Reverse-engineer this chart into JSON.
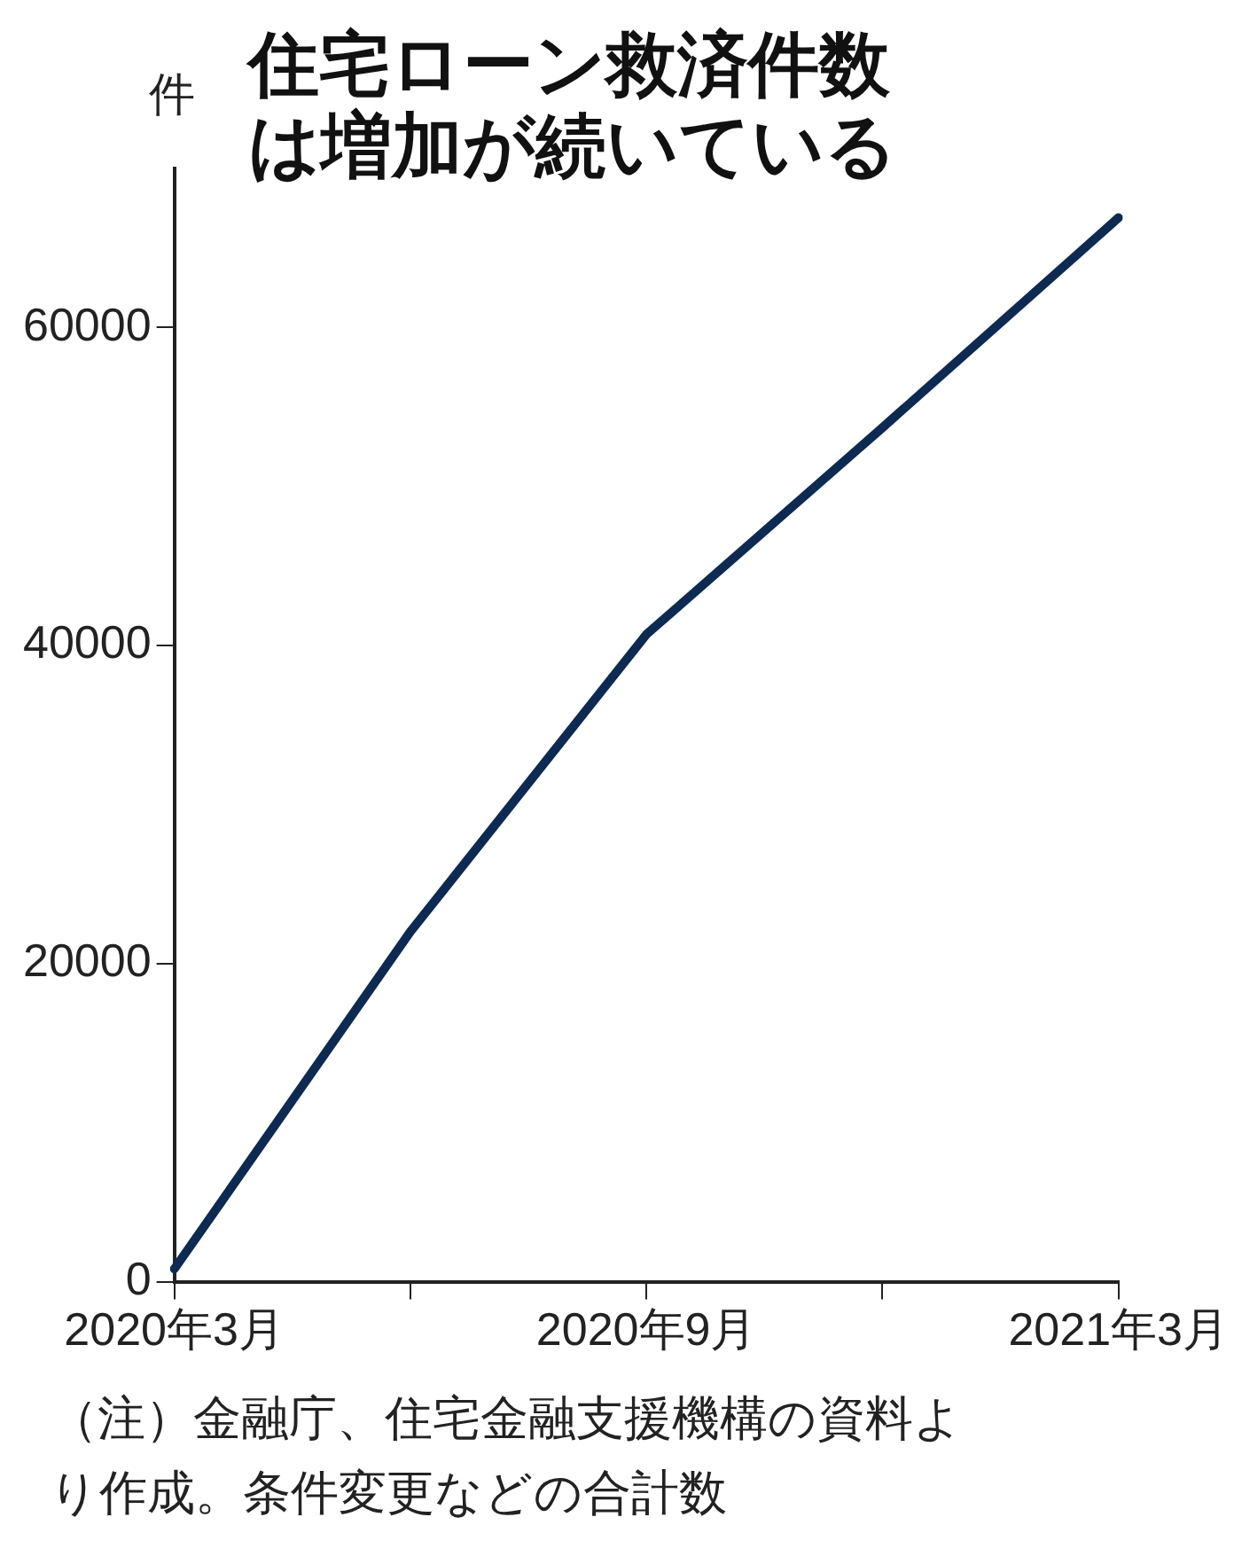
{
  "chart_data": {
    "type": "line",
    "title": "住宅ローン救済件数は増加が続いている",
    "ylabel": "件",
    "categories": [
      "2020年3月",
      null,
      "2020年9月",
      null,
      "2021年3月"
    ],
    "series": [
      {
        "color": "#0d2a52",
        "values": [
          800,
          22000,
          40700,
          53700,
          66900
        ]
      }
    ],
    "ylim": [
      0,
      70000
    ],
    "yticks": [
      0,
      20000,
      40000,
      60000
    ],
    "grid": false,
    "legend": false,
    "marker": "none",
    "line_style": "solid",
    "annotations": [
      "（注）金融庁、住宅金融支援機構の資料より作成。条件変更などの合計数"
    ]
  }
}
